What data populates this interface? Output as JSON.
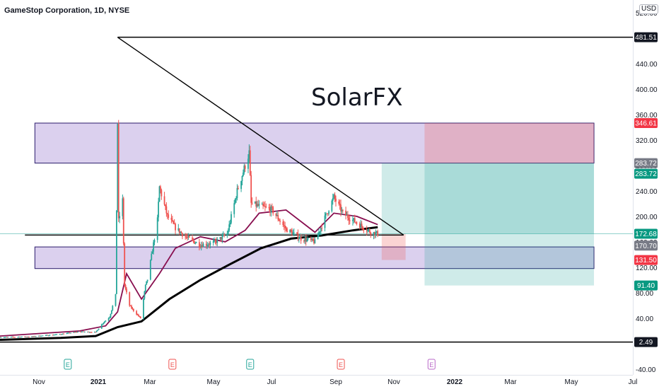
{
  "title": "GameStop Corporation, 1D, NYSE",
  "currency": "USD",
  "watermark": "SolarFX",
  "colors": {
    "up": "#26a69a",
    "down": "#ef5350",
    "ma_fast": "#880e4f",
    "ma_slow": "#000000",
    "zone": "#7e57c2",
    "target": "#26a69a",
    "stop": "#ef5350"
  },
  "chart_data": {
    "type": "line",
    "title": "GameStop Corporation, 1D, NYSE",
    "y_axis": {
      "ticks": [
        -40,
        40,
        80,
        120,
        160,
        200,
        240,
        280,
        320,
        360,
        400,
        440,
        480,
        520
      ],
      "ylim": [
        -40,
        520
      ]
    },
    "x_axis": {
      "labels": [
        "Nov",
        "2021",
        "Mar",
        "May",
        "Jul",
        "Sep",
        "Nov",
        "2022",
        "Mar",
        "May",
        "Jul"
      ],
      "range": [
        "2020-10-01",
        "2022-06-28"
      ]
    },
    "price_labels": [
      {
        "value": 481.51,
        "label": "481.51",
        "style": "black"
      },
      {
        "value": 346.61,
        "label": "346.61",
        "style": "red"
      },
      {
        "value": 283.72,
        "label": "283.72",
        "style": "gray"
      },
      {
        "value": 283.72,
        "label": "283.72",
        "style": "green"
      },
      {
        "value": 172.68,
        "label": "172.68",
        "style": "green"
      },
      {
        "value": 170.7,
        "label": "170.70",
        "style": "gray"
      },
      {
        "value": 131.5,
        "label": "131.50",
        "style": "red"
      },
      {
        "value": 91.4,
        "label": "91.40",
        "style": "green"
      },
      {
        "value": 2.49,
        "label": "2.49",
        "style": "black"
      }
    ],
    "earnings_markers": [
      {
        "date": "2020-12-08",
        "label": "E",
        "status": "past"
      },
      {
        "date": "2021-03-23",
        "label": "E",
        "status": "past"
      },
      {
        "date": "2021-06-09",
        "label": "E",
        "status": "past"
      },
      {
        "date": "2021-09-08",
        "label": "E",
        "status": "past"
      },
      {
        "date": "2021-12-08",
        "label": "E",
        "status": "future"
      }
    ],
    "series": [
      {
        "kind": "price",
        "x": [
          "2020-10-01",
          "2020-11-01",
          "2020-12-01",
          "2020-12-20",
          "2021-01-05",
          "2021-01-12",
          "2021-01-19",
          "2021-01-25",
          "2021-01-27",
          "2021-01-28",
          "2021-02-01",
          "2021-02-03",
          "2021-02-08",
          "2021-02-12",
          "2021-02-19",
          "2021-02-24",
          "2021-02-26",
          "2021-03-08",
          "2021-03-10",
          "2021-03-18",
          "2021-03-26",
          "2021-04-06",
          "2021-04-20",
          "2021-05-03",
          "2021-05-17",
          "2021-05-27",
          "2021-06-04",
          "2021-06-08",
          "2021-06-10",
          "2021-06-18",
          "2021-07-01",
          "2021-07-15",
          "2021-07-30",
          "2021-08-13",
          "2021-08-25",
          "2021-09-01",
          "2021-09-10",
          "2021-09-24",
          "2021-10-08",
          "2021-10-15"
        ],
        "values": [
          10,
          11,
          15,
          19,
          18,
          32,
          42,
          76,
          347,
          193,
          225,
          92,
          60,
          52,
          40,
          91,
          101,
          194,
          246,
          200,
          182,
          167,
          155,
          158,
          172,
          240,
          280,
          300,
          220,
          216,
          210,
          180,
          165,
          160,
          205,
          230,
          205,
          190,
          175,
          172.68
        ]
      },
      {
        "kind": "moving_average",
        "x": [
          "2020-10-01",
          "2020-12-20",
          "2021-01-15",
          "2021-01-27",
          "2021-02-05",
          "2021-02-20",
          "2021-03-10",
          "2021-03-26",
          "2021-04-20",
          "2021-05-15",
          "2021-06-04",
          "2021-06-18",
          "2021-07-15",
          "2021-08-13",
          "2021-09-01",
          "2021-09-24",
          "2021-10-15"
        ],
        "values": [
          12,
          20,
          28,
          50,
          110,
          70,
          110,
          150,
          168,
          160,
          178,
          205,
          210,
          175,
          205,
          200,
          187
        ]
      },
      {
        "kind": "moving_average",
        "x": [
          "2020-10-01",
          "2020-12-01",
          "2021-01-05",
          "2021-01-27",
          "2021-02-20",
          "2021-03-20",
          "2021-04-20",
          "2021-05-20",
          "2021-06-20",
          "2021-07-20",
          "2021-08-20",
          "2021-09-20",
          "2021-10-15"
        ],
        "values": [
          6,
          9,
          12,
          26,
          35,
          70,
          100,
          125,
          150,
          165,
          170,
          178,
          183
        ]
      }
    ],
    "drawings": {
      "triangle": [
        {
          "x": "2021-01-27",
          "y": 481.51
        },
        {
          "x": "2021-11-10",
          "y": 170.7
        },
        {
          "x": "2020-10-26",
          "y": 170.7
        }
      ],
      "zones": [
        {
          "x0": "2020-11-05",
          "x1": "2022-05-20",
          "y_top": 346.61,
          "y_bottom": 283.72
        },
        {
          "x0": "2020-11-05",
          "x1": "2022-05-20",
          "y_top": 152,
          "y_bottom": 118
        }
      ],
      "long_position": {
        "x0": "2021-10-19",
        "x1": "2022-05-20",
        "entry": 172.68,
        "target": 283.72,
        "stop": 131.5
      },
      "short_position": {
        "x0": "2021-12-01",
        "x1": "2022-05-20",
        "entry": 283.72,
        "target": 91.4,
        "stop": 346.61
      },
      "horizontal_lines": [
        481.51,
        2.49
      ]
    }
  }
}
